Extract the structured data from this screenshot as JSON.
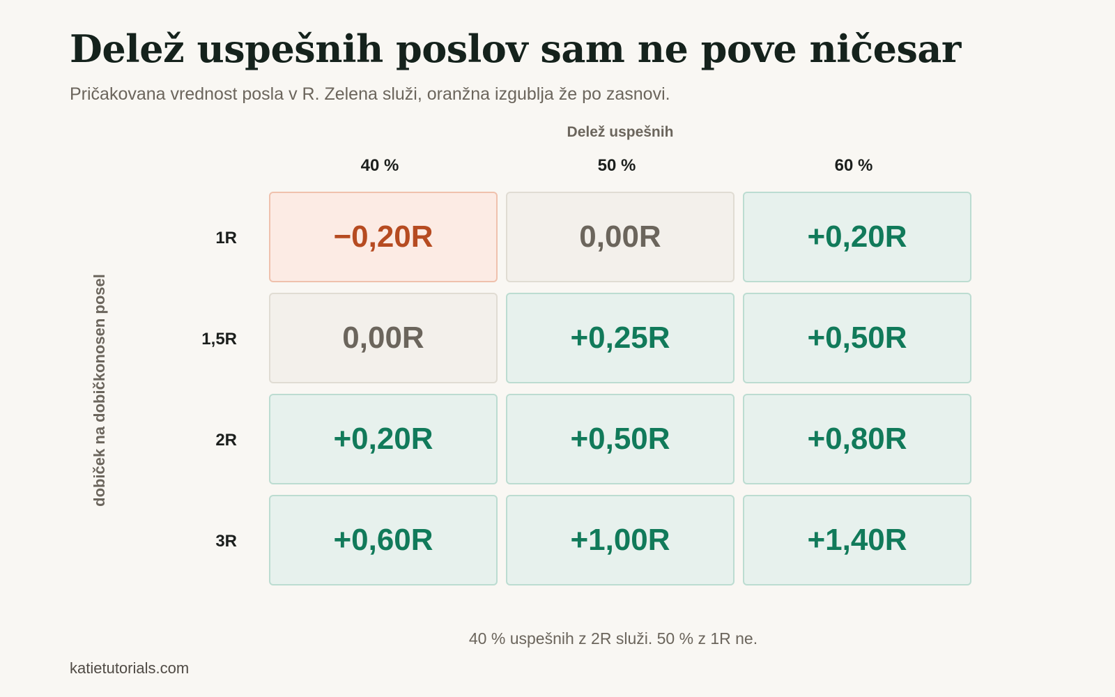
{
  "title": "Delež uspešnih poslov sam ne pove ničesar",
  "subtitle": "Pričakovana vrednost posla v R. Zelena služi, oranžna izgublja že po zasnovi.",
  "footer_note": "40 % uspešnih z 2R služi. 50 % z 1R ne.",
  "site": "katietutorials.com",
  "colors": {
    "positive": "#117a5a",
    "negative": "#b64b21",
    "neutral": "#6b655c"
  },
  "chart_data": {
    "type": "heatmap",
    "title": "Delež uspešnih poslov sam ne pove ničesar",
    "subtitle": "Pričakovana vrednost posla v R. Zelena služi, oranžna izgublja že po zasnovi.",
    "xlabel": "Delež uspešnih",
    "ylabel": "dobiček na dobičkonosen posel",
    "x": [
      "40 %",
      "50 %",
      "60 %"
    ],
    "y": [
      "1R",
      "1,5R",
      "2R",
      "3R"
    ],
    "values": [
      [
        -0.2,
        0.0,
        0.2
      ],
      [
        0.0,
        0.25,
        0.5
      ],
      [
        0.2,
        0.5,
        0.8
      ],
      [
        0.6,
        1.0,
        1.4
      ]
    ],
    "labels": [
      [
        "−0,20R",
        "0,00R",
        "+0,20R"
      ],
      [
        "0,00R",
        "+0,25R",
        "+0,50R"
      ],
      [
        "+0,20R",
        "+0,50R",
        "+0,80R"
      ],
      [
        "+0,60R",
        "+1,00R",
        "+1,40R"
      ]
    ]
  }
}
